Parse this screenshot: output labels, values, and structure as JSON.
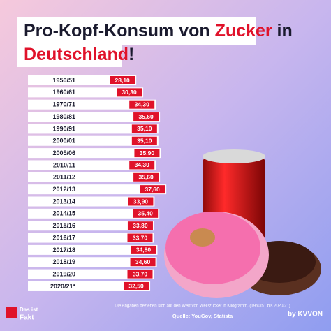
{
  "chart_data": {
    "type": "bar",
    "orientation": "horizontal",
    "title_parts": [
      "Pro-Kopf-Konsum von",
      "Zucker",
      "in",
      "Deutschland",
      "!"
    ],
    "categories": [
      "1950/51",
      "1960/61",
      "1970/71",
      "1980/81",
      "1990/91",
      "2000/01",
      "2005/06",
      "2010/11",
      "2011/12",
      "2012/13",
      "2013/14",
      "2014/15",
      "2015/16",
      "2016/17",
      "2017/18",
      "2018/19",
      "2019/20",
      "2020/21*"
    ],
    "values": [
      28.1,
      30.3,
      34.3,
      35.6,
      35.1,
      35.1,
      35.9,
      34.3,
      35.6,
      37.6,
      33.9,
      35.4,
      33.8,
      33.7,
      34.8,
      34.6,
      33.7,
      32.5
    ],
    "value_labels": [
      "28,10",
      "30,30",
      "34,30",
      "35,60",
      "35,10",
      "35,10",
      "35,90",
      "34,30",
      "35,60",
      "37,60",
      "33,90",
      "35,40",
      "33,80",
      "33,70",
      "34,80",
      "34,60",
      "33,70",
      "32,50"
    ],
    "color": "#ffffff",
    "label_color": "#e0122a",
    "xlim": [
      0,
      40
    ],
    "footnote": "Die Angaben beziehen sich auf den Wert von Weißzucker in Kilogramm. (1950/51 bis 2020/21)",
    "source": "Quelle: YouGov, Statista",
    "logo": [
      "Das ist",
      "Fakt"
    ],
    "brand": "by KVVON"
  }
}
